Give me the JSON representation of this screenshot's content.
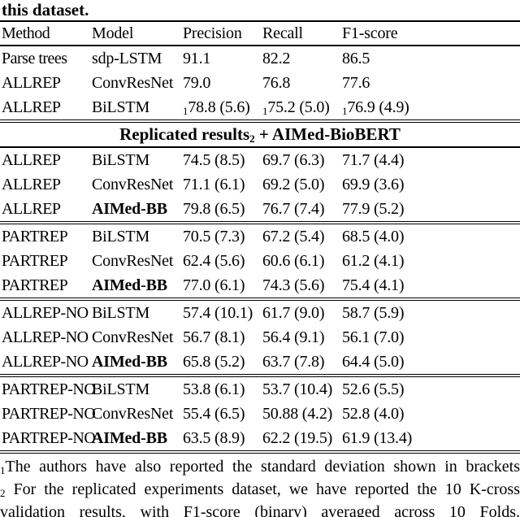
{
  "caption": "this dataset.",
  "table": {
    "columns": [
      "Method",
      "Model",
      "Precision",
      "Recall",
      "F1-score"
    ],
    "section_header": {
      "pre": "Replicated results",
      "sub": "2",
      "post": " + AIMed-BioBERT"
    },
    "sections": [
      {
        "rows": [
          {
            "method": "Parse trees",
            "model": "sdp-LSTM",
            "bold": false,
            "values": [
              {
                "sub": "",
                "val": "91.1"
              },
              {
                "sub": "",
                "val": "82.2"
              },
              {
                "sub": "",
                "val": "86.5"
              }
            ]
          },
          {
            "method": "ALLREP",
            "model": "ConvResNet",
            "bold": false,
            "values": [
              {
                "sub": "",
                "val": "79.0"
              },
              {
                "sub": "",
                "val": "76.8"
              },
              {
                "sub": "",
                "val": "77.6"
              }
            ]
          },
          {
            "method": "ALLREP",
            "model": "BiLSTM",
            "bold": false,
            "values": [
              {
                "sub": "1",
                "val": "78.8 (5.6)"
              },
              {
                "sub": "1",
                "val": "75.2 (5.0)"
              },
              {
                "sub": "1",
                "val": "76.9 (4.9)"
              }
            ]
          }
        ]
      },
      {
        "rows": [
          {
            "method": "ALLREP",
            "model": "BiLSTM",
            "bold": false,
            "values": [
              {
                "sub": "",
                "val": "74.5 (8.5)"
              },
              {
                "sub": "",
                "val": "69.7 (6.3)"
              },
              {
                "sub": "",
                "val": "71.7 (4.4)"
              }
            ]
          },
          {
            "method": "ALLREP",
            "model": "ConvResNet",
            "bold": false,
            "values": [
              {
                "sub": "",
                "val": "71.1 (6.1)"
              },
              {
                "sub": "",
                "val": "69.2 (5.0)"
              },
              {
                "sub": "",
                "val": "69.9 (3.6)"
              }
            ]
          },
          {
            "method": "ALLREP",
            "model": "AIMed-BB",
            "bold": true,
            "values": [
              {
                "sub": "",
                "val": "79.8 (6.5)"
              },
              {
                "sub": "",
                "val": "76.7 (7.4)"
              },
              {
                "sub": "",
                "val": "77.9 (5.2)"
              }
            ]
          }
        ]
      },
      {
        "rows": [
          {
            "method": "PARTREP",
            "model": "BiLSTM",
            "bold": false,
            "values": [
              {
                "sub": "",
                "val": "70.5 (7.3)"
              },
              {
                "sub": "",
                "val": "67.2 (5.4)"
              },
              {
                "sub": "",
                "val": "68.5 (4.0)"
              }
            ]
          },
          {
            "method": "PARTREP",
            "model": "ConvResNet",
            "bold": false,
            "values": [
              {
                "sub": "",
                "val": "62.4 (5.6)"
              },
              {
                "sub": "",
                "val": "60.6 (6.1)"
              },
              {
                "sub": "",
                "val": "61.2 (4.1)"
              }
            ]
          },
          {
            "method": "PARTREP",
            "model": "AIMed-BB",
            "bold": true,
            "values": [
              {
                "sub": "",
                "val": "77.0 (6.1)"
              },
              {
                "sub": "",
                "val": "74.3 (5.6)"
              },
              {
                "sub": "",
                "val": "75.4 (4.1)"
              }
            ]
          }
        ]
      },
      {
        "rows": [
          {
            "method": "ALLREP-NO",
            "model": "BiLSTM",
            "bold": false,
            "values": [
              {
                "sub": "",
                "val": "57.4 (10.1)"
              },
              {
                "sub": "",
                "val": "61.7 (9.0)"
              },
              {
                "sub": "",
                "val": "58.7 (5.9)"
              }
            ]
          },
          {
            "method": "ALLREP-NO",
            "model": "ConvResNet",
            "bold": false,
            "values": [
              {
                "sub": "",
                "val": "56.7 (8.1)"
              },
              {
                "sub": "",
                "val": "56.4 (9.1)"
              },
              {
                "sub": "",
                "val": "56.1 (7.0)"
              }
            ]
          },
          {
            "method": "ALLREP-NO",
            "model": "AIMed-BB",
            "bold": true,
            "values": [
              {
                "sub": "",
                "val": "65.8 (5.2)"
              },
              {
                "sub": "",
                "val": "63.7 (7.8)"
              },
              {
                "sub": "",
                "val": "64.4 (5.0)"
              }
            ]
          }
        ]
      },
      {
        "rows": [
          {
            "method": "PARTREP-NO",
            "model": "BiLSTM",
            "bold": false,
            "values": [
              {
                "sub": "",
                "val": "53.8 (6.1)"
              },
              {
                "sub": "",
                "val": "53.7 (10.4)"
              },
              {
                "sub": "",
                "val": "52.6 (5.5)"
              }
            ]
          },
          {
            "method": "PARTREP-NO",
            "model": "ConvResNet",
            "bold": false,
            "values": [
              {
                "sub": "",
                "val": "55.4 (6.5)"
              },
              {
                "sub": "",
                "val": "50.88 (4.2)"
              },
              {
                "sub": "",
                "val": "52.8 (4.0)"
              }
            ]
          },
          {
            "method": "PARTREP-NO",
            "model": "AIMed-BB",
            "bold": true,
            "values": [
              {
                "sub": "",
                "val": "63.5 (8.9)"
              },
              {
                "sub": "",
                "val": "62.2 (19.5)"
              },
              {
                "sub": "",
                "val": "61.9 (13.4)"
              }
            ]
          }
        ]
      }
    ]
  },
  "footnotes": [
    {
      "sub": "1",
      "text": "The authors have also reported the standard deviation shown in brackets"
    },
    {
      "sub": "2",
      "text": " For the replicated experiments dataset, we have reported the 10 K-cross validation results, with F1-score (binary) averaged across 10 Folds."
    }
  ],
  "colors": {
    "text": "#000000",
    "background": "#ffffff"
  }
}
